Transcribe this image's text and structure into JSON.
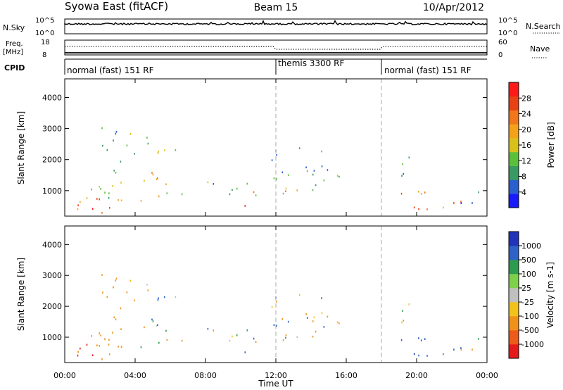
{
  "header": {
    "title": "Syowa East (fitACF)",
    "beam": "Beam 15",
    "date": "10/Apr/2012"
  },
  "noise_panel": {
    "left_label": "N.Sky",
    "right_label": "N.Search",
    "left_ticks": [
      "10^5",
      "10^0"
    ],
    "right_ticks": [
      "10^5",
      "10^0"
    ]
  },
  "freq_panel": {
    "left_label_line1": "Freq.",
    "left_label_line2": "[MHz]",
    "left_ticks": [
      "18",
      "8"
    ],
    "right_label": "Nave",
    "right_ticks": [
      "60",
      "0"
    ]
  },
  "cpid": {
    "label": "CPID",
    "segments": [
      {
        "label": "normal (fast) 151 RF",
        "start_hour": 0
      },
      {
        "label": "themis 3300 RF",
        "start_hour": 12
      },
      {
        "label": "normal (fast) 151 RF",
        "start_hour": 18
      }
    ]
  },
  "power_panel": {
    "ylabel": "Slant Range [km]",
    "yticks": [
      "1000",
      "2000",
      "3000",
      "4000"
    ],
    "colorbar_label": "Power [dB]",
    "colorbar_ticks": [
      "4",
      "8",
      "12",
      "16",
      "20",
      "24",
      "28"
    ],
    "colors": [
      "#1a1aff",
      "#2a5fcf",
      "#3a9a64",
      "#5cbf3c",
      "#d8c21a",
      "#f4a21a",
      "#f2761a",
      "#e84214",
      "#ff1a1a"
    ]
  },
  "velocity_panel": {
    "ylabel": "Slant Range [km]",
    "yticks": [
      "1000",
      "2000",
      "3000",
      "4000"
    ],
    "colorbar_label": "Velocity [m s-1]",
    "colorbar_ticks": [
      "1000",
      "500",
      "100",
      "25",
      "-25",
      "-100",
      "-500",
      "-1000"
    ],
    "colors": [
      "#2233bb",
      "#2f62c8",
      "#2e9c4e",
      "#7ed04a",
      "#c0c0c0",
      "#f0c21a",
      "#f0921a",
      "#ee5a18",
      "#e51a1a"
    ]
  },
  "x_axis": {
    "label": "Time UT",
    "ticks": [
      "00:00",
      "04:00",
      "08:00",
      "12:00",
      "16:00",
      "20:00",
      "00:00"
    ]
  },
  "chart_data": {
    "type": "heatmap",
    "title": "Syowa East (fitACF)",
    "xlabel": "Time UT",
    "ylabel": "Slant Range [km]",
    "xlim_hours": [
      0,
      24
    ],
    "ylim_km": [
      180,
      4600
    ],
    "power_range_db": [
      0,
      30
    ],
    "velocity_range_ms": [
      -1000,
      1000
    ],
    "data_gap_hours": [
      17.0,
      18.7
    ],
    "echo_regions": [
      {
        "t0": 0.0,
        "t1": 2.6,
        "r0": 300,
        "r1": 1200,
        "power": 22,
        "velocity": -500
      },
      {
        "t0": 0.4,
        "t1": 2.0,
        "r0": 330,
        "r1": 520,
        "power": 29,
        "velocity": -600
      },
      {
        "t0": 1.5,
        "t1": 3.8,
        "r0": 600,
        "r1": 1600,
        "power": 14,
        "velocity": -300
      },
      {
        "t0": 2.0,
        "t1": 4.0,
        "r0": 1500,
        "r1": 3200,
        "power": 9,
        "velocity": -200
      },
      {
        "t0": 3.8,
        "t1": 7.0,
        "r0": 1200,
        "r1": 1700,
        "power": 18,
        "velocity": 0
      },
      {
        "t0": 4.5,
        "t1": 6.5,
        "r0": 2000,
        "r1": 2800,
        "power": 11,
        "velocity": 0
      },
      {
        "t0": 4.0,
        "t1": 6.8,
        "r0": 650,
        "r1": 1000,
        "power": 16,
        "velocity": -50
      },
      {
        "t0": 6.5,
        "t1": 10.5,
        "r0": 900,
        "r1": 1300,
        "power": 10,
        "velocity": 0
      },
      {
        "t0": 9.5,
        "t1": 10.8,
        "r0": 350,
        "r1": 600,
        "power": 24,
        "velocity": 0
      },
      {
        "t0": 10.0,
        "t1": 14.5,
        "r0": 800,
        "r1": 1200,
        "power": 18,
        "velocity": 0
      },
      {
        "t0": 11.5,
        "t1": 15.0,
        "r0": 1300,
        "r1": 2400,
        "power": 8,
        "velocity": 0
      },
      {
        "t0": 14.0,
        "t1": 16.2,
        "r0": 1100,
        "r1": 1600,
        "power": 10,
        "velocity": -200
      },
      {
        "t0": 18.7,
        "t1": 19.8,
        "r0": 1300,
        "r1": 2200,
        "power": 7,
        "velocity": -50
      },
      {
        "t0": 19.0,
        "t1": 22.5,
        "r0": 350,
        "r1": 1000,
        "power": 20,
        "velocity": 200
      },
      {
        "t0": 19.3,
        "t1": 21.0,
        "r0": 350,
        "r1": 520,
        "power": 28,
        "velocity": 600
      },
      {
        "t0": 22.5,
        "t1": 24.0,
        "r0": 400,
        "r1": 1000,
        "power": 6,
        "velocity": -50
      }
    ]
  }
}
